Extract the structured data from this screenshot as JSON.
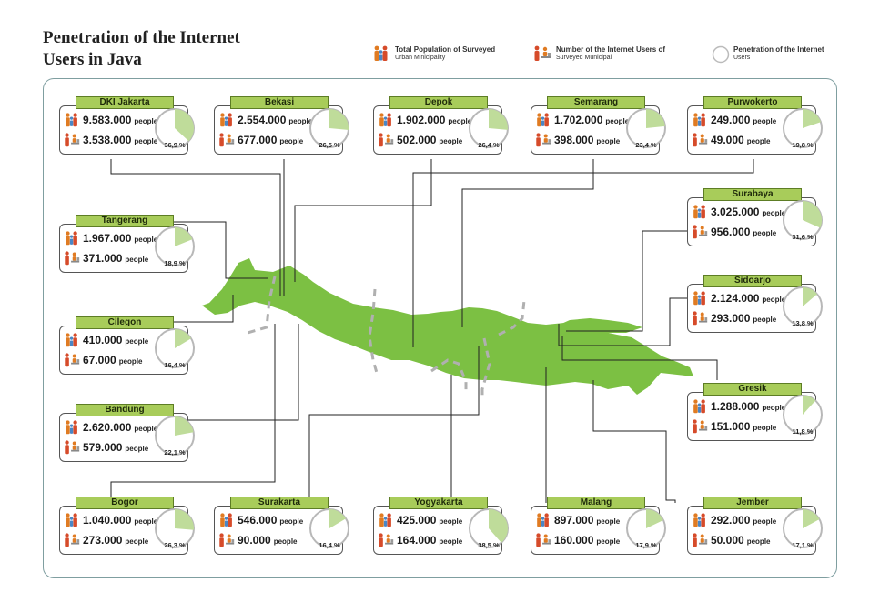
{
  "header": {
    "title_line1": "Penetration of the Internet",
    "title_line2": "Users in Java"
  },
  "legend": {
    "population_line1": "Total Population of Surveyed",
    "population_line2": "Urban Minicipality",
    "users_line1": "Number of the Internet Users of",
    "users_line2": "Surveyed Municipal",
    "penetration_line1": "Penetration of the Internet",
    "penetration_line2": "Users"
  },
  "unit_label": "people",
  "colors": {
    "accent": "#a8cc5a",
    "map": "#7cc043",
    "pie_fill": "#bfdc9a",
    "border": "#7f9ea0"
  },
  "chart_data": {
    "type": "table",
    "title": "Penetration of the Internet Users in Java",
    "columns": [
      "Total Population of Surveyed Urban Minicipality",
      "Number of the Internet Users of Surveyed Municipal",
      "Penetration of the Internet Users"
    ],
    "cities": [
      {
        "name": "DKI Jakarta",
        "population": "9.583.000",
        "users": "3.538.000",
        "penetration_label": "36,9 %",
        "penetration": 36.9
      },
      {
        "name": "Bekasi",
        "population": "2.554.000",
        "users": "677.000",
        "penetration_label": "26,5 %",
        "penetration": 26.5
      },
      {
        "name": "Depok",
        "population": "1.902.000",
        "users": "502.000",
        "penetration_label": "26,4 %",
        "penetration": 26.4
      },
      {
        "name": "Semarang",
        "population": "1.702.000",
        "users": "398.000",
        "penetration_label": "23,4 %",
        "penetration": 23.4
      },
      {
        "name": "Purwokerto",
        "population": "249.000",
        "users": "49.000",
        "penetration_label": "19,8 %",
        "penetration": 19.8
      },
      {
        "name": "Tangerang",
        "population": "1.967.000",
        "users": "371.000",
        "penetration_label": "18,9 %",
        "penetration": 18.9
      },
      {
        "name": "Surabaya",
        "population": "3.025.000",
        "users": "956.000",
        "penetration_label": "31,6 %",
        "penetration": 31.6
      },
      {
        "name": "Cilegon",
        "population": "410.000",
        "users": "67.000",
        "penetration_label": "16,4 %",
        "penetration": 16.4
      },
      {
        "name": "Sidoarjo",
        "population": "2.124.000",
        "users": "293.000",
        "penetration_label": "13,8 %",
        "penetration": 13.8
      },
      {
        "name": "Bandung",
        "population": "2.620.000",
        "users": "579.000",
        "penetration_label": "22,1 %",
        "penetration": 22.1
      },
      {
        "name": "Gresik",
        "population": "1.288.000",
        "users": "151.000",
        "penetration_label": "11,8 %",
        "penetration": 11.8
      },
      {
        "name": "Bogor",
        "population": "1.040.000",
        "users": "273.000",
        "penetration_label": "26,3 %",
        "penetration": 26.3
      },
      {
        "name": "Surakarta",
        "population": "546.000",
        "users": "90.000",
        "penetration_label": "16,4 %",
        "penetration": 16.4
      },
      {
        "name": "Yogyakarta",
        "population": "425.000",
        "users": "164.000",
        "penetration_label": "38,5 %",
        "penetration": 38.5
      },
      {
        "name": "Malang",
        "population": "897.000",
        "users": "160.000",
        "penetration_label": "17,9 %",
        "penetration": 17.9
      },
      {
        "name": "Jember",
        "population": "292.000",
        "users": "50.000",
        "penetration_label": "17,1 %",
        "penetration": 17.1
      }
    ]
  }
}
